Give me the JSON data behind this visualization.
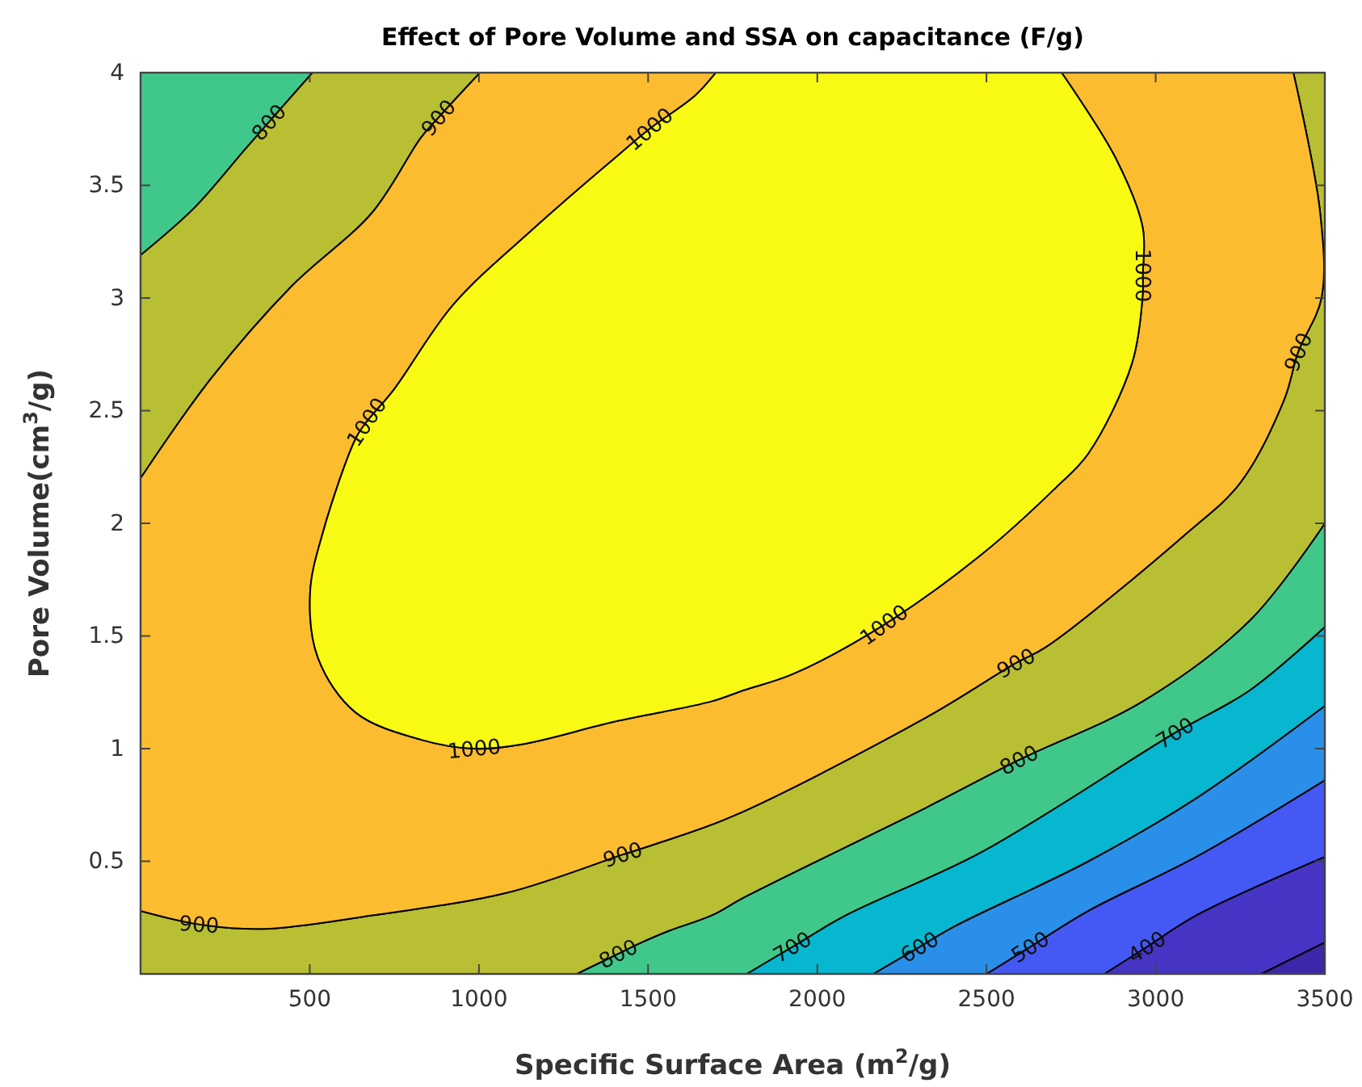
{
  "chart_data": {
    "type": "area",
    "title": "Effect of Pore Volume and SSA on capacitance (F/g)",
    "xlabel": "Specific Surface Area (m$^{2}$/g)",
    "ylabel": "Pore Volume(cm$^{3}$/g)",
    "xlim": [
      0,
      3500
    ],
    "ylim": [
      0,
      4
    ],
    "xticks": [
      500,
      1000,
      1500,
      2000,
      2500,
      3000,
      3500
    ],
    "yticks": [
      0.5,
      1,
      1.5,
      2,
      2.5,
      3,
      3.5,
      4
    ],
    "grid": false,
    "legend": false,
    "series": [
      {
        "color": "#3e26a8",
        "x": [
          3312,
          3500,
          3500
        ],
        "values": [
          0,
          0.14,
          0
        ]
      },
      {
        "color": "#4634c4",
        "x": [
          2848,
          2974,
          3120,
          3500,
          3500,
          3312
        ],
        "values": [
          0,
          0.12,
          0.26,
          0.52,
          0.14,
          0
        ]
      },
      {
        "color": "#4459f4",
        "x": [
          2500,
          2629,
          2801,
          3120,
          3500,
          3500,
          3120,
          2974,
          2848
        ],
        "values": [
          0,
          0.12,
          0.28,
          0.52,
          0.86,
          0.52,
          0.26,
          0.12,
          0
        ]
      },
      {
        "color": "#2a8fe8",
        "x": [
          2165,
          2302,
          2404,
          2801,
          3120,
          3500,
          3500,
          3120,
          2801,
          2629,
          2500
        ],
        "values": [
          0,
          0.12,
          0.21,
          0.5,
          0.78,
          1.19,
          0.86,
          0.52,
          0.28,
          0.12,
          0
        ]
      },
      {
        "color": "#07b6cf",
        "x": [
          1791,
          1926,
          2084,
          2484,
          3057,
          3279,
          3500,
          3500,
          3120,
          2801,
          2404,
          2302,
          2165
        ],
        "values": [
          0,
          0.12,
          0.26,
          0.54,
          1.07,
          1.26,
          1.54,
          1.19,
          0.78,
          0.5,
          0.21,
          0.12,
          0
        ]
      },
      {
        "color": "#40c88a",
        "x": [
          1289,
          1412,
          1481,
          1559,
          1688,
          1784,
          2324,
          2596,
          2962,
          3279,
          3500,
          3500,
          3279,
          3057,
          2484,
          2084,
          1926,
          1791,
          null,
          0,
          159,
          309,
          379,
          420,
          508,
          0
        ],
        "values": [
          0,
          0.09,
          0.14,
          0.19,
          0.26,
          0.34,
          0.74,
          0.95,
          1.21,
          1.57,
          2.0,
          1.54,
          1.26,
          1.07,
          0.54,
          0.26,
          0.12,
          0,
          null,
          3.19,
          3.4,
          3.66,
          3.78,
          3.85,
          4,
          4
        ]
      },
      {
        "color": "#b8bf33",
        "x": [
          1289,
          1412,
          1481,
          1559,
          1688,
          1784,
          2324,
          2596,
          2962,
          3279,
          3500,
          3500,
          3407,
          3486,
          3490,
          3421,
          3380,
          3250,
          3087,
          2675,
          2587,
          2324,
          1750,
          1528,
          1425,
          1082,
          684,
          364,
          173,
          0,
          0,
          null,
          508,
          420,
          379,
          309,
          159,
          0,
          0,
          207,
          445,
          685,
          828,
          880,
          1003
        ],
        "values": [
          0,
          0.09,
          0.14,
          0.19,
          0.26,
          0.34,
          0.74,
          0.95,
          1.21,
          1.57,
          2.0,
          4,
          4,
          3.38,
          3.0,
          2.76,
          2.55,
          2.18,
          1.95,
          1.45,
          1.38,
          1.14,
          0.7,
          0.58,
          0.53,
          0.36,
          0.26,
          0.2,
          0.22,
          0.28,
          0,
          null,
          4,
          3.85,
          3.78,
          3.66,
          3.4,
          3.19,
          2.2,
          2.64,
          3.05,
          3.38,
          3.71,
          3.8,
          4
        ]
      },
      {
        "color": "#fbbc30",
        "x": [
          1003,
          880,
          828,
          685,
          445,
          207,
          0,
          0,
          173,
          364,
          684,
          1082,
          1425,
          1528,
          1750,
          2324,
          2587,
          2675,
          3087,
          3250,
          3380,
          3421,
          3490,
          3486,
          3407,
          2722,
          2882,
          2962,
          2962,
          2962,
          2930,
          2801,
          2706,
          2484,
          2197,
          1926,
          1784,
          1688,
          1401,
          1130,
          986,
          828,
          636,
          525,
          501,
          541,
          637,
          668,
          747,
          924,
          1163,
          1401,
          1504,
          1640,
          1700
        ],
        "values": [
          4,
          3.8,
          3.71,
          3.38,
          3.05,
          2.64,
          2.2,
          0.28,
          0.22,
          0.2,
          0.26,
          0.36,
          0.53,
          0.58,
          0.7,
          1.14,
          1.38,
          1.45,
          1.95,
          2.18,
          2.55,
          2.76,
          3.0,
          3.38,
          4,
          4,
          3.62,
          3.31,
          3.1,
          3.02,
          2.71,
          2.31,
          2.16,
          1.86,
          1.55,
          1.33,
          1.26,
          1.21,
          1.12,
          1.02,
          1.0,
          1.04,
          1.16,
          1.4,
          1.69,
          1.97,
          2.38,
          2.45,
          2.59,
          2.97,
          3.31,
          3.62,
          3.75,
          3.9,
          4
        ]
      },
      {
        "color": "#f8fa14",
        "x": [
          1700,
          1640,
          1504,
          1401,
          1163,
          924,
          747,
          668,
          637,
          541,
          501,
          525,
          636,
          828,
          986,
          1130,
          1401,
          1688,
          1784,
          1926,
          2197,
          2484,
          2706,
          2801,
          2930,
          2962,
          2962,
          2962,
          2882,
          2722
        ],
        "values": [
          4,
          3.9,
          3.75,
          3.62,
          3.31,
          2.97,
          2.59,
          2.45,
          2.38,
          1.97,
          1.69,
          1.4,
          1.16,
          1.04,
          1.0,
          1.02,
          1.12,
          1.21,
          1.26,
          1.33,
          1.55,
          1.86,
          2.16,
          2.31,
          2.71,
          3.02,
          3.1,
          3.31,
          3.62,
          4
        ]
      }
    ],
    "annotations": [
      {
        "text": "800",
        "x": 379,
        "y": 3.78
      },
      {
        "text": "900",
        "x": 880,
        "y": 3.8
      },
      {
        "text": "1000",
        "x": 1504,
        "y": 3.75
      },
      {
        "text": "1000",
        "x": 668,
        "y": 2.45
      },
      {
        "text": "1000",
        "x": 2962,
        "y": 3.1
      },
      {
        "text": "900",
        "x": 3421,
        "y": 2.76
      },
      {
        "text": "1000",
        "x": 986,
        "y": 1.0
      },
      {
        "text": "900",
        "x": 173,
        "y": 0.22
      },
      {
        "text": "900",
        "x": 1425,
        "y": 0.53
      },
      {
        "text": "800",
        "x": 1412,
        "y": 0.09
      },
      {
        "text": "1000",
        "x": 2197,
        "y": 1.55
      },
      {
        "text": "900",
        "x": 2587,
        "y": 1.38
      },
      {
        "text": "800",
        "x": 2596,
        "y": 0.95
      },
      {
        "text": "700",
        "x": 3057,
        "y": 1.07
      },
      {
        "text": "700",
        "x": 1926,
        "y": 0.12
      },
      {
        "text": "600",
        "x": 2302,
        "y": 0.12
      },
      {
        "text": "500",
        "x": 2629,
        "y": 0.12
      },
      {
        "text": "400",
        "x": 2974,
        "y": 0.12
      }
    ]
  }
}
